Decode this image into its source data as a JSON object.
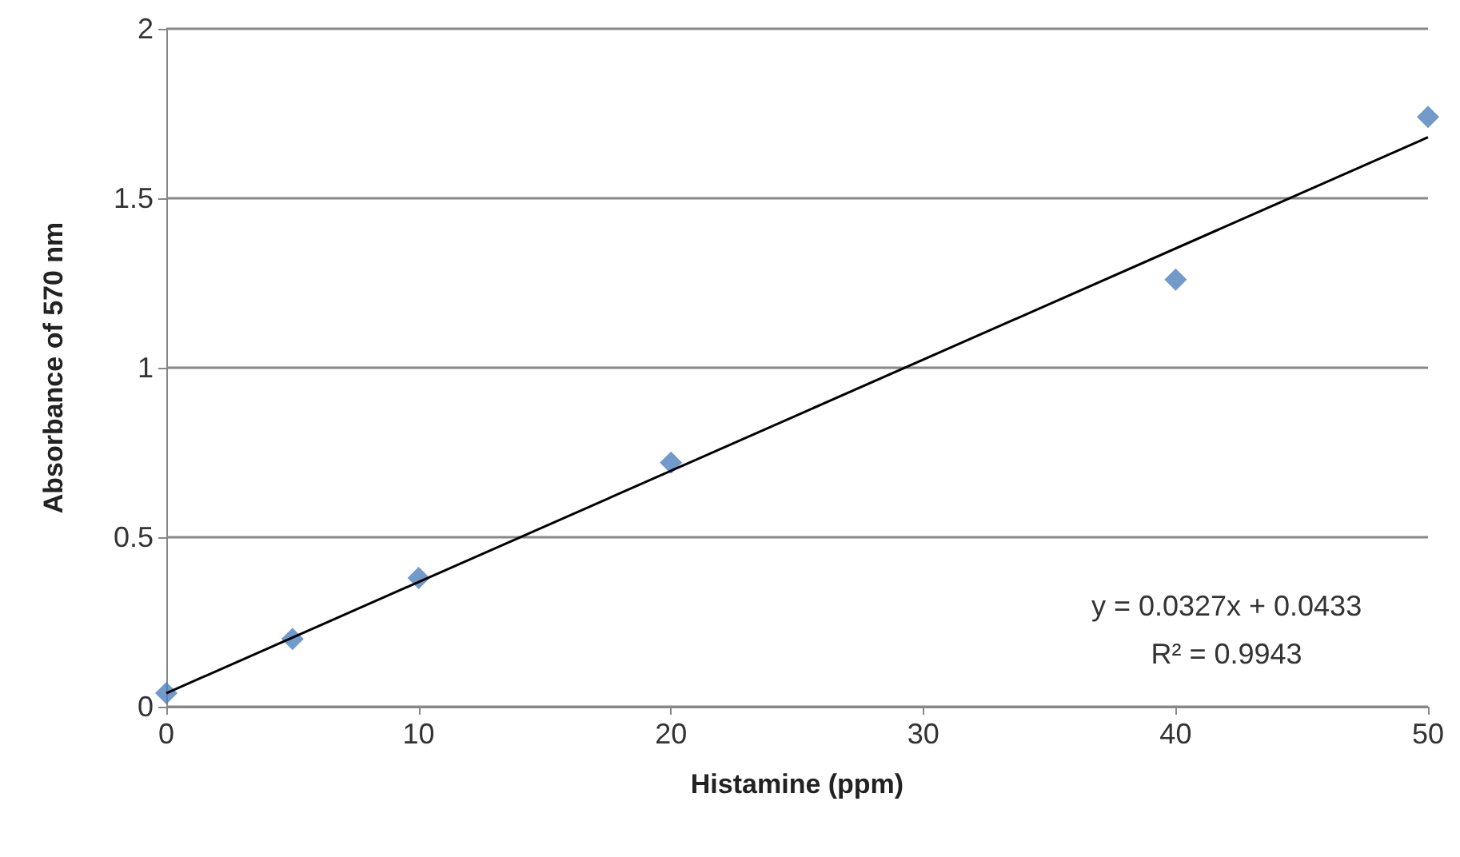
{
  "chart_data": {
    "type": "scatter",
    "xlabel": "Histamine (ppm)",
    "ylabel": "Absorbance of 570 nm",
    "xlim": [
      0,
      50
    ],
    "xticks": [
      0,
      10,
      20,
      30,
      40,
      50
    ],
    "ylim": [
      0,
      2
    ],
    "yticks": [
      0,
      0.5,
      1,
      1.5,
      2
    ],
    "grid": "y",
    "series": [
      {
        "marker": "diamond",
        "color": "#4f81bd",
        "x": [
          0,
          5,
          10,
          20,
          40,
          50
        ],
        "values": [
          0.04,
          0.2,
          0.38,
          0.72,
          1.26,
          1.74
        ]
      },
      {
        "type": "line",
        "color": "#000000",
        "x": [
          0,
          50
        ],
        "values": [
          0.04,
          1.68
        ],
        "marker": "none",
        "line_style": "solid"
      }
    ],
    "annotations": [
      "y = 0.0327x + 0.0433",
      "R² = 0.9943"
    ]
  }
}
